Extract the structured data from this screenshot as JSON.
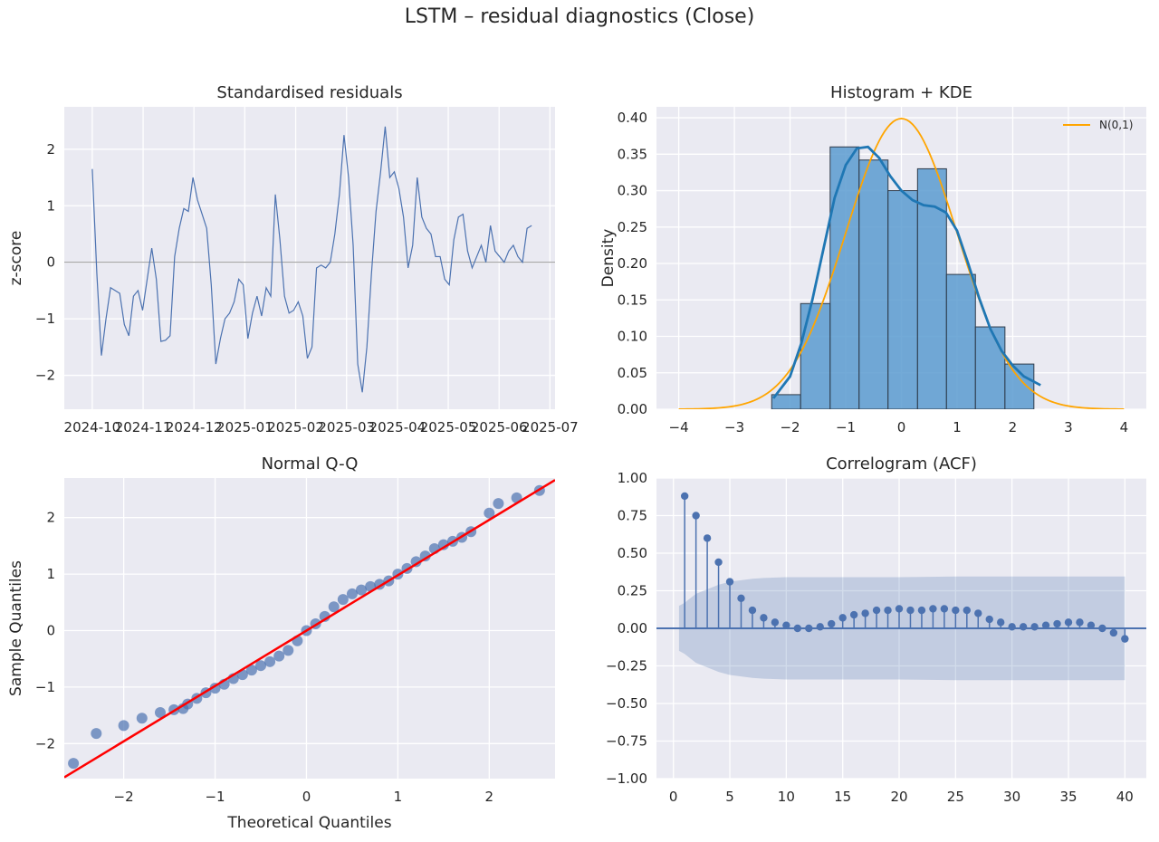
{
  "figure": {
    "suptitle": "LSTM – residual diagnostics (Close)"
  },
  "colors": {
    "panel_bg": "#EAEAF2",
    "grid": "#FFFFFF",
    "series_blue": "#4C72B0",
    "hist_fill": "#5B9BD0",
    "kde_blue": "#1F77B4",
    "normal_orange": "#FFA500",
    "qq_line_red": "#FF0000",
    "zero_line_gray": "#999999"
  },
  "chart_data": [
    {
      "id": "residuals",
      "type": "line",
      "title": "Standardised residuals",
      "xlabel": "",
      "ylabel": "z-score",
      "x_tick_labels": [
        "2024-10",
        "2024-11",
        "2024-12",
        "2025-01",
        "2025-02",
        "2025-03",
        "2025-04",
        "2025-05",
        "2025-06",
        "2025-07"
      ],
      "yticks": [
        -2,
        -1,
        0,
        1,
        2
      ],
      "ylim": [
        -2.6,
        2.75
      ],
      "xlim_months": [
        -0.55,
        9.1
      ],
      "reference_line_y": 0,
      "grid": true,
      "x_month_offset": [
        0.0,
        0.09,
        0.18,
        0.27,
        0.36,
        0.45,
        0.54,
        0.63,
        0.72,
        0.81,
        0.9,
        0.99,
        1.08,
        1.17,
        1.26,
        1.35,
        1.44,
        1.53,
        1.62,
        1.71,
        1.8,
        1.89,
        1.98,
        2.07,
        2.16,
        2.25,
        2.34,
        2.43,
        2.52,
        2.61,
        2.7,
        2.79,
        2.88,
        2.97,
        3.06,
        3.15,
        3.24,
        3.33,
        3.42,
        3.51,
        3.6,
        3.69,
        3.78,
        3.87,
        3.96,
        4.05,
        4.14,
        4.23,
        4.32,
        4.41,
        4.5,
        4.59,
        4.68,
        4.77,
        4.86,
        4.95,
        5.04,
        5.13,
        5.22,
        5.31,
        5.4,
        5.49,
        5.58,
        5.67,
        5.76,
        5.85,
        5.94,
        6.03,
        6.12,
        6.21,
        6.3,
        6.39,
        6.48,
        6.57,
        6.66,
        6.75,
        6.84,
        6.93,
        7.02,
        7.11,
        7.2,
        7.29,
        7.38,
        7.47,
        7.56,
        7.65,
        7.74,
        7.83,
        7.92,
        8.01,
        8.1,
        8.19,
        8.28,
        8.37,
        8.46,
        8.55,
        8.64
      ],
      "values": [
        1.65,
        -0.2,
        -1.65,
        -1.0,
        -0.45,
        -0.5,
        -0.55,
        -1.1,
        -1.3,
        -0.6,
        -0.5,
        -0.85,
        -0.3,
        0.25,
        -0.3,
        -1.4,
        -1.38,
        -1.3,
        0.1,
        0.6,
        0.95,
        0.9,
        1.5,
        1.1,
        0.85,
        0.6,
        -0.4,
        -1.8,
        -1.35,
        -1.0,
        -0.9,
        -0.7,
        -0.3,
        -0.4,
        -1.35,
        -0.9,
        -0.6,
        -0.95,
        -0.45,
        -0.6,
        1.2,
        0.4,
        -0.6,
        -0.9,
        -0.85,
        -0.7,
        -0.95,
        -1.7,
        -1.5,
        -0.1,
        -0.05,
        -0.1,
        0.0,
        0.5,
        1.2,
        2.25,
        1.5,
        0.3,
        -1.8,
        -2.3,
        -1.5,
        -0.2,
        0.9,
        1.6,
        2.4,
        1.5,
        1.6,
        1.3,
        0.8,
        -0.1,
        0.3,
        1.5,
        0.8,
        0.6,
        0.5,
        0.1,
        0.1,
        -0.3,
        -0.4,
        0.4,
        0.8,
        0.85,
        0.2,
        -0.1,
        0.1,
        0.3,
        0.0,
        0.65,
        0.2,
        0.1,
        0.0,
        0.2,
        0.3,
        0.1,
        0.0,
        0.6,
        0.65
      ]
    },
    {
      "id": "histogram",
      "type": "bar",
      "title": "Histogram + KDE",
      "xlabel": "",
      "ylabel": "Density",
      "xticks": [
        -4,
        -3,
        -2,
        -1,
        0,
        1,
        2,
        3,
        4
      ],
      "yticks": [
        0.0,
        0.05,
        0.1,
        0.15,
        0.2,
        0.25,
        0.3,
        0.35,
        0.4
      ],
      "ytick_labels": [
        "0.00",
        "0.05",
        "0.10",
        "0.15",
        "0.20",
        "0.25",
        "0.30",
        "0.35",
        "0.40"
      ],
      "xlim": [
        -4.4,
        4.4
      ],
      "ylim": [
        0,
        0.415
      ],
      "grid": true,
      "bin_edges": [
        -2.33,
        -1.81,
        -1.28,
        -0.76,
        -0.24,
        0.29,
        0.81,
        1.33,
        1.86,
        2.38
      ],
      "densities": [
        0.02,
        0.145,
        0.36,
        0.342,
        0.3,
        0.33,
        0.185,
        0.113,
        0.062
      ],
      "kde": {
        "x": [
          -2.3,
          -2.0,
          -1.8,
          -1.6,
          -1.4,
          -1.2,
          -1.0,
          -0.8,
          -0.6,
          -0.4,
          -0.2,
          0.0,
          0.2,
          0.4,
          0.6,
          0.8,
          1.0,
          1.2,
          1.4,
          1.6,
          1.8,
          2.0,
          2.2,
          2.5
        ],
        "y": [
          0.015,
          0.045,
          0.09,
          0.15,
          0.22,
          0.29,
          0.335,
          0.358,
          0.36,
          0.345,
          0.32,
          0.3,
          0.287,
          0.28,
          0.278,
          0.27,
          0.245,
          0.2,
          0.152,
          0.11,
          0.08,
          0.06,
          0.045,
          0.033
        ]
      },
      "normal_curve_label": "N(0,1)",
      "legend_position": "upper right"
    },
    {
      "id": "qq",
      "type": "scatter",
      "title": "Normal Q-Q",
      "xlabel": "Theoretical Quantiles",
      "ylabel": "Sample Quantiles",
      "xticks": [
        -2,
        -1,
        0,
        1,
        2
      ],
      "yticks": [
        -2,
        -1,
        0,
        1,
        2
      ],
      "xlim": [
        -2.65,
        2.72
      ],
      "ylim": [
        -2.62,
        2.7
      ],
      "grid": true,
      "reference_line": {
        "slope": 0.98,
        "intercept": 0.0
      },
      "points_x": [
        -2.55,
        -2.3,
        -2.0,
        -1.8,
        -1.6,
        -1.45,
        -1.35,
        -1.3,
        -1.2,
        -1.1,
        -1.0,
        -0.9,
        -0.8,
        -0.7,
        -0.6,
        -0.5,
        -0.4,
        -0.3,
        -0.2,
        -0.1,
        0.0,
        0.1,
        0.2,
        0.3,
        0.4,
        0.5,
        0.6,
        0.7,
        0.8,
        0.9,
        1.0,
        1.1,
        1.2,
        1.3,
        1.4,
        1.5,
        1.6,
        1.7,
        1.8,
        2.0,
        2.1,
        2.3,
        2.55
      ],
      "points_y": [
        -2.35,
        -1.82,
        -1.68,
        -1.55,
        -1.45,
        -1.4,
        -1.38,
        -1.3,
        -1.2,
        -1.1,
        -1.02,
        -0.95,
        -0.85,
        -0.78,
        -0.7,
        -0.62,
        -0.55,
        -0.45,
        -0.35,
        -0.18,
        0.0,
        0.12,
        0.25,
        0.42,
        0.55,
        0.65,
        0.72,
        0.78,
        0.82,
        0.88,
        1.0,
        1.1,
        1.22,
        1.32,
        1.45,
        1.52,
        1.58,
        1.65,
        1.75,
        2.08,
        2.25,
        2.35,
        2.48
      ]
    },
    {
      "id": "acf",
      "type": "bar",
      "subtype": "stem",
      "title": "Correlogram (ACF)",
      "xlabel": "",
      "ylabel": "",
      "xticks": [
        0,
        5,
        10,
        15,
        20,
        25,
        30,
        35,
        40
      ],
      "yticks": [
        -1.0,
        -0.75,
        -0.5,
        -0.25,
        0.0,
        0.25,
        0.5,
        0.75,
        1.0
      ],
      "ytick_labels": [
        "−1.00",
        "−0.75",
        "−0.50",
        "−0.25",
        "0.00",
        "0.25",
        "0.50",
        "0.75",
        "1.00"
      ],
      "xlim": [
        -1.5,
        41.9
      ],
      "ylim": [
        -1.0,
        1.0
      ],
      "grid": true,
      "lags": [
        1,
        2,
        3,
        4,
        5,
        6,
        7,
        8,
        9,
        10,
        11,
        12,
        13,
        14,
        15,
        16,
        17,
        18,
        19,
        20,
        21,
        22,
        23,
        24,
        25,
        26,
        27,
        28,
        29,
        30,
        31,
        32,
        33,
        34,
        35,
        36,
        37,
        38,
        39,
        40
      ],
      "values": [
        0.88,
        0.75,
        0.6,
        0.44,
        0.31,
        0.2,
        0.12,
        0.07,
        0.04,
        0.02,
        0.0,
        0.0,
        0.01,
        0.03,
        0.07,
        0.09,
        0.1,
        0.12,
        0.12,
        0.13,
        0.12,
        0.12,
        0.13,
        0.13,
        0.12,
        0.12,
        0.1,
        0.06,
        0.04,
        0.01,
        0.01,
        0.01,
        0.02,
        0.03,
        0.04,
        0.04,
        0.02,
        0.0,
        -0.03,
        -0.07
      ],
      "confidence_band": {
        "lags": [
          0.5,
          1,
          1.5,
          2,
          3,
          4,
          5,
          6,
          7,
          8,
          10,
          15,
          20,
          25,
          30,
          35,
          40
        ],
        "upper": [
          0.15,
          0.17,
          0.2,
          0.23,
          0.26,
          0.29,
          0.31,
          0.32,
          0.33,
          0.335,
          0.34,
          0.34,
          0.34,
          0.345,
          0.345,
          0.345,
          0.345
        ]
      }
    }
  ]
}
